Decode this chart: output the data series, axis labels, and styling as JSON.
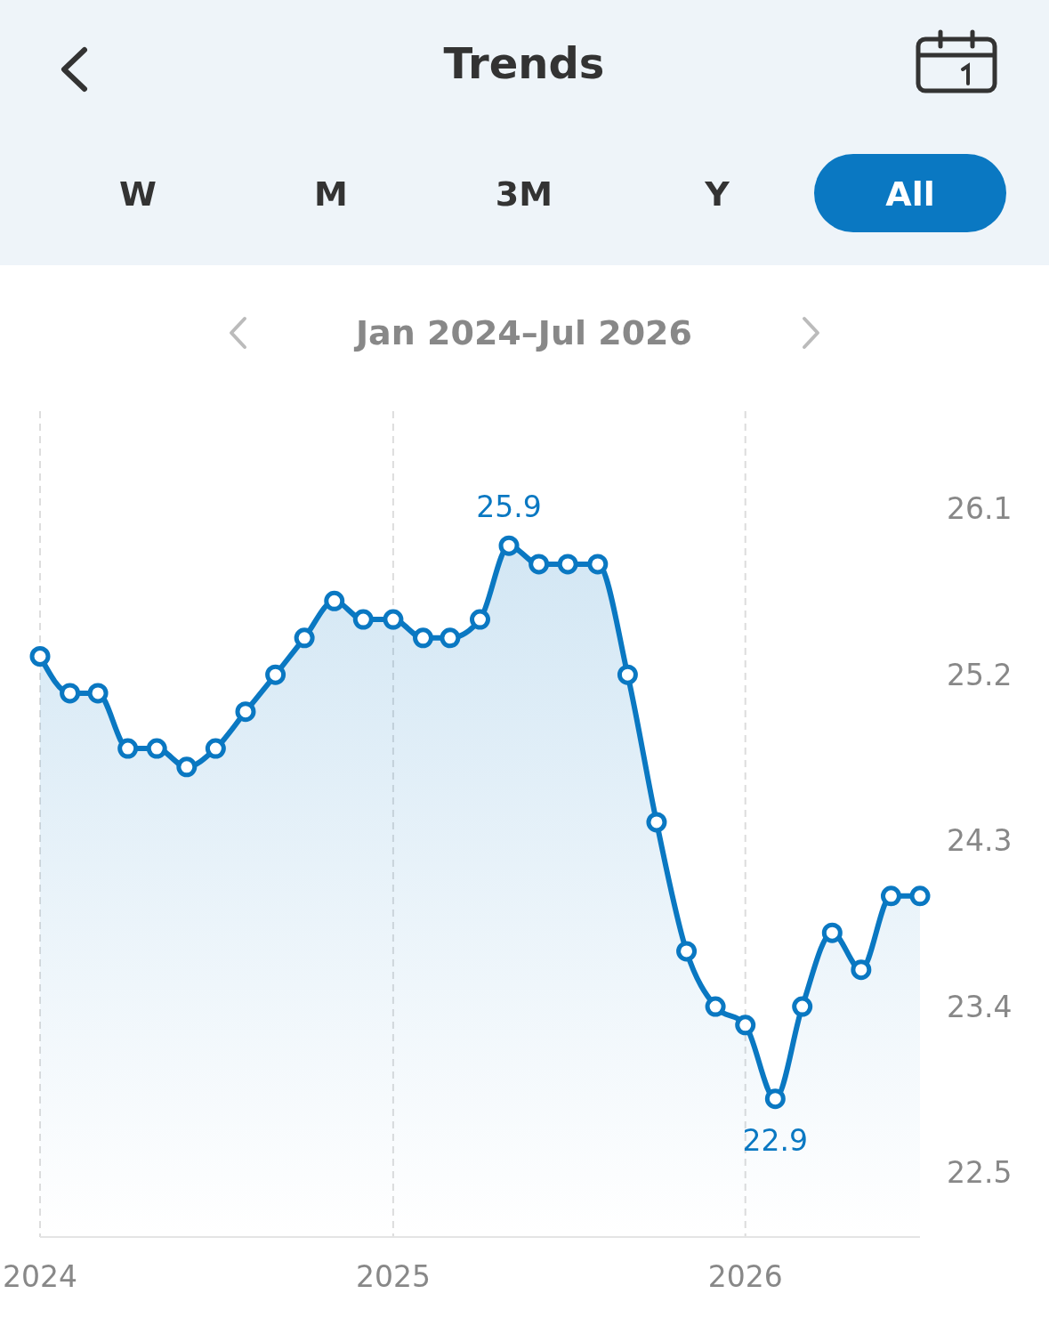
{
  "chart_data": {
    "type": "area",
    "title": "Trends",
    "subtitle": "Jan 2024–Jul 2026",
    "annotations": [
      "W",
      "M",
      "3M",
      "Y",
      "All"
    ],
    "x": [
      "2024-01",
      "2024-02",
      "2024-03",
      "2024-04",
      "2024-05",
      "2024-06",
      "2024-07",
      "2024-08",
      "2024-09",
      "2024-10",
      "2024-11",
      "2024-12",
      "2025-01",
      "2025-02",
      "2025-03",
      "2025-04",
      "2025-05",
      "2025-06",
      "2025-07",
      "2025-08",
      "2025-09",
      "2025-10",
      "2025-11",
      "2025-12",
      "2026-01",
      "2026-02",
      "2026-03",
      "2026-04",
      "2026-05",
      "2026-06",
      "2026-07"
    ],
    "series": [
      {
        "color": "#0a78c2",
        "values": [
          25.3,
          25.1,
          25.1,
          24.8,
          24.8,
          24.7,
          24.8,
          25.0,
          25.2,
          25.4,
          25.6,
          25.5,
          25.5,
          25.4,
          25.4,
          25.5,
          25.9,
          25.8,
          25.8,
          25.8,
          25.2,
          24.4,
          23.7,
          23.4,
          23.3,
          22.9,
          23.4,
          23.8,
          23.6,
          24.0,
          24.0
        ],
        "value_labels": [
          null,
          null,
          null,
          null,
          null,
          null,
          null,
          null,
          null,
          null,
          null,
          null,
          null,
          null,
          null,
          null,
          "25.9",
          null,
          null,
          null,
          null,
          null,
          null,
          null,
          null,
          "22.9",
          null,
          null,
          null,
          null,
          null
        ]
      }
    ],
    "xlim": [
      "2024-01",
      "2026-07"
    ],
    "xticks": [
      {
        "value": "2024-01",
        "label": "2024"
      },
      {
        "value": "2025-01",
        "label": "2025"
      },
      {
        "value": "2026-01",
        "label": "2026"
      }
    ],
    "ylim": [
      22.15,
      26.63
    ],
    "yticks": [
      22.5,
      23.4,
      24.3,
      25.2,
      26.1
    ],
    "grid": "x",
    "marker": "circle",
    "line_style": "solid"
  }
}
